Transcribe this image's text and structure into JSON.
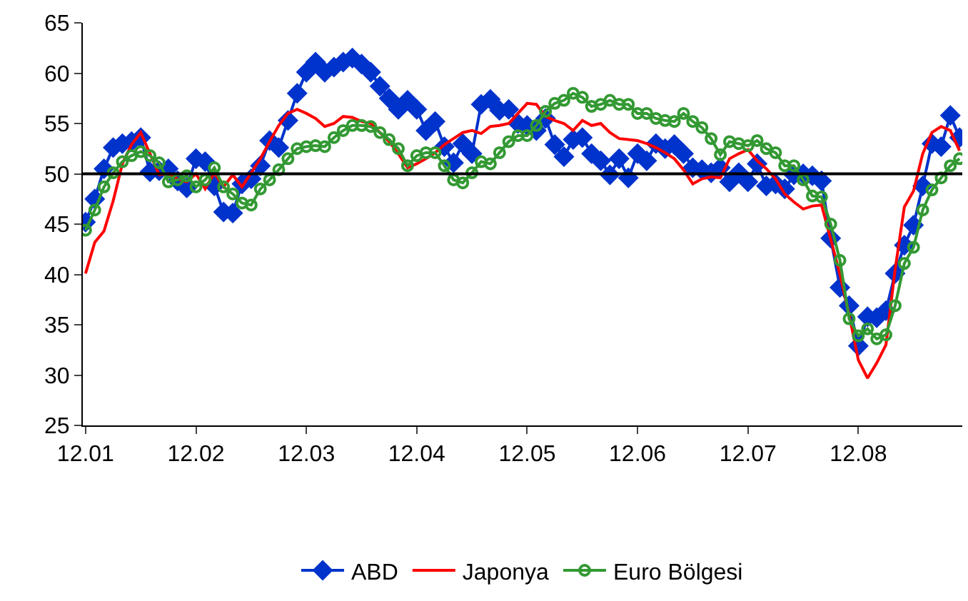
{
  "chart_data": {
    "type": "line",
    "categories": [
      "12.01",
      null,
      null,
      null,
      null,
      null,
      null,
      null,
      null,
      null,
      null,
      null,
      "12.02",
      null,
      null,
      null,
      null,
      null,
      null,
      null,
      null,
      null,
      null,
      null,
      "12.03",
      null,
      null,
      null,
      null,
      null,
      null,
      null,
      null,
      null,
      null,
      null,
      "12.04",
      null,
      null,
      null,
      null,
      null,
      null,
      null,
      null,
      null,
      null,
      null,
      "12.05",
      null,
      null,
      null,
      null,
      null,
      null,
      null,
      null,
      null,
      null,
      null,
      "12.06",
      null,
      null,
      null,
      null,
      null,
      null,
      null,
      null,
      null,
      null,
      null,
      "12.07",
      null,
      null,
      null,
      null,
      null,
      null,
      null,
      null,
      null,
      null,
      null,
      "12.08",
      null,
      null,
      null,
      null,
      null,
      null,
      null,
      null,
      null,
      null,
      null
    ],
    "series": [
      {
        "name": "ABD",
        "color": "#0033cc",
        "marker": "diamond",
        "values": [
          45.2,
          47.5,
          50.5,
          52.6,
          53.0,
          53.2,
          53.6,
          50.2,
          50.3,
          50.5,
          49.3,
          48.6,
          51.5,
          51.2,
          48.8,
          46.2,
          46.1,
          49.0,
          49.5,
          50.8,
          53.3,
          52.6,
          55.3,
          58.0,
          60.1,
          61.1,
          60.1,
          60.6,
          61.1,
          61.5,
          60.9,
          60.1,
          58.7,
          57.5,
          56.4,
          57.3,
          56.4,
          54.3,
          55.2,
          52.7,
          51.1,
          53.0,
          52.0,
          56.9,
          57.4,
          56.3,
          56.4,
          55.0,
          54.8,
          54.3,
          55.5,
          52.9,
          51.7,
          53.4,
          53.6,
          52.0,
          51.3,
          49.9,
          51.5,
          49.6,
          52.0,
          51.3,
          53.0,
          52.5,
          52.9,
          52.0,
          50.6,
          50.4,
          50.1,
          50.6,
          49.2,
          50.1,
          49.2,
          51.0,
          48.8,
          49.0,
          48.5,
          49.9,
          50.0,
          49.8,
          49.3,
          43.6,
          38.7,
          36.9,
          32.9,
          35.8,
          35.7,
          36.4,
          40.1,
          42.9,
          44.9,
          48.8,
          53.0,
          52.7,
          55.8,
          53.6
        ]
      },
      {
        "name": "Japonya",
        "color": "#ff0000",
        "marker": "none",
        "values": [
          40.1,
          43.2,
          44.3,
          47.3,
          51.0,
          52.9,
          54.1,
          52.0,
          49.9,
          50.0,
          49.5,
          49.2,
          50.0,
          48.5,
          50.1,
          48.7,
          49.9,
          48.7,
          50.1,
          51.5,
          53.2,
          54.8,
          56.0,
          56.4,
          56.0,
          55.5,
          54.7,
          55.0,
          55.7,
          55.6,
          55.2,
          55.0,
          54.1,
          53.2,
          52.0,
          50.6,
          51.0,
          51.5,
          52.1,
          52.9,
          53.5,
          54.1,
          54.3,
          54.0,
          54.7,
          54.8,
          55.0,
          56.0,
          57.0,
          56.9,
          55.7,
          55.3,
          55.0,
          54.3,
          55.3,
          54.8,
          55.0,
          54.1,
          53.5,
          53.4,
          53.3,
          53.0,
          52.6,
          52.1,
          51.5,
          50.4,
          49.0,
          49.5,
          49.7,
          49.6,
          51.5,
          52.0,
          52.4,
          51.3,
          50.5,
          49.5,
          48.0,
          47.2,
          46.5,
          46.8,
          46.9,
          43.5,
          40.0,
          36.0,
          31.5,
          29.7,
          31.2,
          33.0,
          40.5,
          46.7,
          48.3,
          52.0,
          54.1,
          54.7,
          54.3,
          52.3
        ]
      },
      {
        "name": "Euro Bölgesi",
        "color": "#339933",
        "marker": "circle",
        "values": [
          44.4,
          46.4,
          48.7,
          50.1,
          51.2,
          51.8,
          52.2,
          51.8,
          51.1,
          49.2,
          49.4,
          49.8,
          48.7,
          49.4,
          50.6,
          48.7,
          48.0,
          47.1,
          46.9,
          48.5,
          49.4,
          50.4,
          51.5,
          52.5,
          52.7,
          52.8,
          52.7,
          53.6,
          54.3,
          54.8,
          54.8,
          54.7,
          54.1,
          53.4,
          52.5,
          50.8,
          51.8,
          52.1,
          52.1,
          50.8,
          49.4,
          49.1,
          50.1,
          51.2,
          51.0,
          52.1,
          53.2,
          53.8,
          53.8,
          54.8,
          56.2,
          57.0,
          57.3,
          58.0,
          57.6,
          56.7,
          56.9,
          57.3,
          56.9,
          56.9,
          56.0,
          56.0,
          55.5,
          55.3,
          55.2,
          56.0,
          55.2,
          54.6,
          53.5,
          51.9,
          53.2,
          53.0,
          52.8,
          53.3,
          52.5,
          52.1,
          50.8,
          50.8,
          49.4,
          47.8,
          47.7,
          45.0,
          41.4,
          35.6,
          33.9,
          34.6,
          33.6,
          34.0,
          36.9,
          41.1,
          42.7,
          46.4,
          48.4,
          49.6,
          50.8,
          51.5
        ]
      }
    ],
    "ylim": [
      25,
      65
    ],
    "yticks": [
      25,
      30,
      35,
      40,
      45,
      50,
      55,
      60,
      65
    ],
    "ref_lines": [
      {
        "axis": "y",
        "value": 50,
        "color": "#000000"
      }
    ],
    "grid": false,
    "legend": "bottom",
    "line_style": "solid"
  }
}
